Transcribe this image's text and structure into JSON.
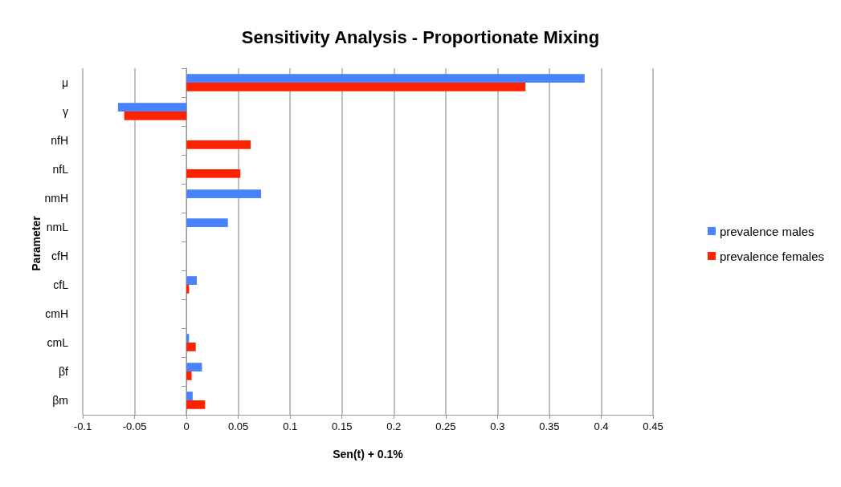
{
  "chart_data": {
    "type": "bar",
    "orientation": "horizontal",
    "title": "Sensitivity Analysis - Proportionate Mixing",
    "xlabel": "Sen(t) + 0.1%",
    "ylabel": "Parameter",
    "categories": [
      "μ",
      "γ",
      "nfH",
      "nfL",
      "nmH",
      "nmL",
      "cfH",
      "cfL",
      "cmH",
      "cmL",
      "βf",
      "βm"
    ],
    "series": [
      {
        "name": "prevalence males",
        "color": "#4a82fb",
        "values": [
          0.384,
          -0.066,
          0,
          0,
          0.072,
          0.04,
          null,
          0.01,
          null,
          0.0025,
          0.015,
          0.006
        ]
      },
      {
        "name": "prevalence females",
        "color": "#ff2200",
        "values": [
          0.327,
          -0.06,
          0.062,
          0.052,
          0,
          0,
          null,
          0.0025,
          null,
          0.009,
          0.005,
          0.018
        ]
      }
    ],
    "xlim": [
      -0.1,
      0.45
    ],
    "xticks": [
      -0.1,
      -0.05,
      0,
      0.05,
      0.1,
      0.15,
      0.2,
      0.25,
      0.3,
      0.35,
      0.4,
      0.45
    ],
    "grid": "x",
    "legend": "right"
  }
}
